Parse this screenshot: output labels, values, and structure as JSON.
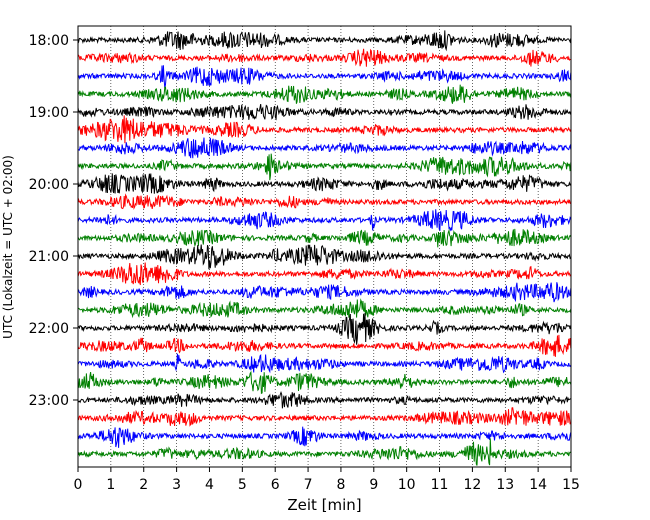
{
  "chart_data": {
    "type": "line",
    "title": "",
    "xlabel": "Zeit  [min]",
    "ylabel": "UTC (Lokalzeit = UTC + 02:00)",
    "xlim": [
      0,
      15
    ],
    "x_ticks": [
      "0",
      "1",
      "2",
      "3",
      "4",
      "5",
      "6",
      "7",
      "8",
      "9",
      "10",
      "11",
      "12",
      "13",
      "14",
      "15"
    ],
    "y_ticks": [
      "18:00",
      "19:00",
      "20:00",
      "21:00",
      "22:00",
      "23:00"
    ],
    "grid_x": true,
    "grid_y": false,
    "legend": "none",
    "line_colors": [
      "#000000",
      "#ff0000",
      "#0000ff",
      "#008000"
    ],
    "series": [
      {
        "start": "18:00",
        "color": "#000000"
      },
      {
        "start": "18:15",
        "color": "#ff0000"
      },
      {
        "start": "18:30",
        "color": "#0000ff"
      },
      {
        "start": "18:45",
        "color": "#008000"
      },
      {
        "start": "19:00",
        "color": "#000000"
      },
      {
        "start": "19:15",
        "color": "#ff0000"
      },
      {
        "start": "19:30",
        "color": "#0000ff"
      },
      {
        "start": "19:45",
        "color": "#008000"
      },
      {
        "start": "20:00",
        "color": "#000000"
      },
      {
        "start": "20:15",
        "color": "#ff0000"
      },
      {
        "start": "20:30",
        "color": "#0000ff"
      },
      {
        "start": "20:45",
        "color": "#008000"
      },
      {
        "start": "21:00",
        "color": "#000000"
      },
      {
        "start": "21:15",
        "color": "#ff0000"
      },
      {
        "start": "21:30",
        "color": "#0000ff"
      },
      {
        "start": "21:45",
        "color": "#008000"
      },
      {
        "start": "22:00",
        "color": "#000000"
      },
      {
        "start": "22:15",
        "color": "#ff0000"
      },
      {
        "start": "22:30",
        "color": "#0000ff"
      },
      {
        "start": "22:45",
        "color": "#008000"
      },
      {
        "start": "23:00",
        "color": "#000000"
      },
      {
        "start": "23:15",
        "color": "#ff0000"
      },
      {
        "start": "23:30",
        "color": "#0000ff"
      },
      {
        "start": "23:45",
        "color": "#008000"
      }
    ]
  }
}
